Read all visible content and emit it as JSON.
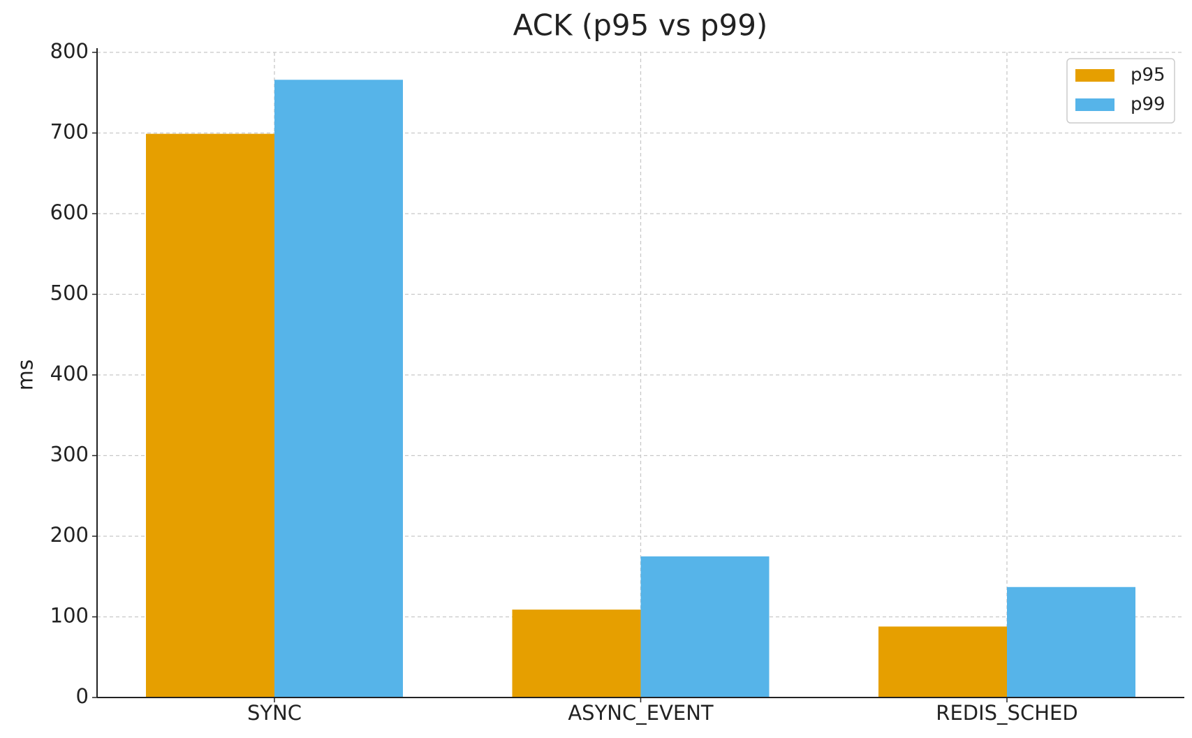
{
  "chart_data": {
    "type": "bar",
    "title": "ACK (p95 vs p99)",
    "y_label": "ms",
    "categories": [
      "SYNC",
      "ASYNC_EVENT",
      "REDIS_SCHED"
    ],
    "series": [
      {
        "name": "p95",
        "color": "#e69f00",
        "values": [
          699,
          109,
          88
        ]
      },
      {
        "name": "p99",
        "color": "#56b4e9",
        "values": [
          766,
          175,
          137
        ]
      }
    ],
    "ylim": [
      0,
      800
    ],
    "yticks": [
      0,
      100,
      200,
      300,
      400,
      500,
      600,
      700,
      800
    ],
    "grid": true,
    "legend": "upper right"
  }
}
